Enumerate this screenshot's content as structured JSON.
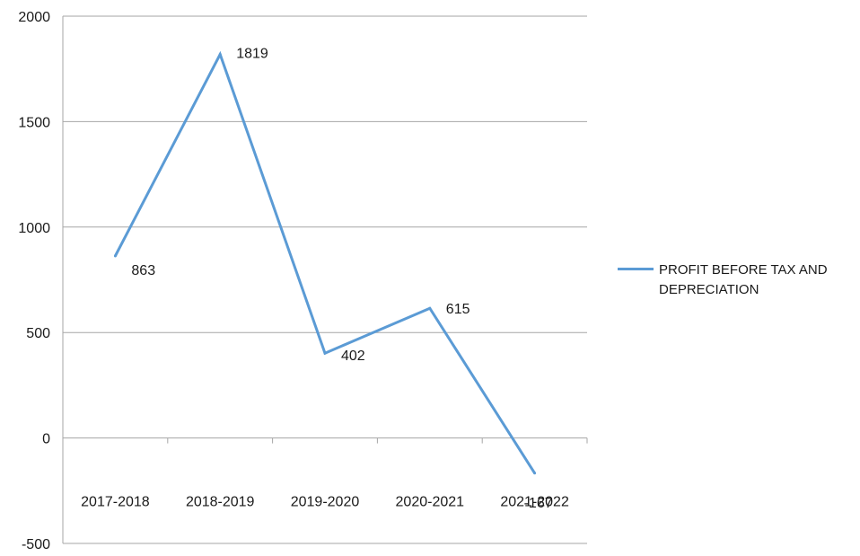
{
  "chart_data": {
    "type": "line",
    "title": "",
    "xlabel": "",
    "ylabel": "",
    "categories": [
      "2017-2018",
      "2018-2019",
      "2019-2020",
      "2020-2021",
      "2021-2022"
    ],
    "series": [
      {
        "name": "PROFIT BEFORE TAX AND DEPRECIATION",
        "values": [
          863,
          1819,
          402,
          615,
          -167
        ],
        "color": "#5b9bd5"
      }
    ],
    "ylim": [
      -500,
      2000
    ],
    "yticks": [
      -500,
      0,
      500,
      1000,
      1500,
      2000
    ],
    "grid": "horizontal",
    "legend_position": "right",
    "data_labels": [
      "863",
      "1819",
      "402",
      "615",
      "-167"
    ]
  }
}
